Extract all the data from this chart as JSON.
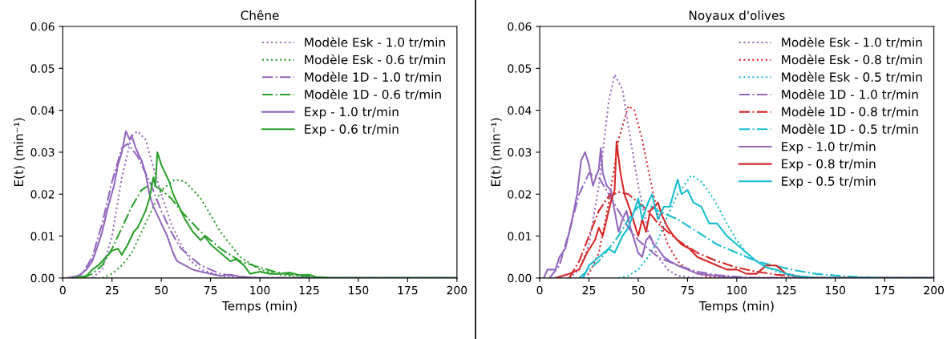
{
  "chart_data": [
    {
      "type": "line",
      "title": "Chêne",
      "xlabel": "Temps (min)",
      "ylabel": "E(t) (min⁻¹)",
      "legend": "top right",
      "grid": false,
      "xlim": [
        0,
        200
      ],
      "xticks": [
        0,
        25,
        50,
        75,
        100,
        125,
        150,
        175,
        200
      ],
      "ylim": [
        0,
        0.06
      ],
      "yticks": [
        {
          "value": 0,
          "label": "0.00"
        },
        {
          "value": 0.01,
          "label": "0.01"
        },
        {
          "value": 0.02,
          "label": "0.02"
        },
        {
          "value": 0.03,
          "label": "0.03"
        },
        {
          "value": 0.04,
          "label": "0.04"
        },
        {
          "value": 0.05,
          "label": "0.05"
        },
        {
          "value": 0.06,
          "label": "0.06"
        }
      ],
      "series": [
        {
          "name": "Modèle Esk - 1.0 tr/min",
          "color": "#9467bd",
          "line_style": "dotted",
          "x": [
            15,
            20,
            25,
            30,
            35,
            38,
            42,
            45,
            50,
            55,
            60,
            65,
            70,
            80,
            90,
            200
          ],
          "values": [
            0,
            0.002,
            0.01,
            0.024,
            0.034,
            0.035,
            0.033,
            0.028,
            0.02,
            0.013,
            0.008,
            0.004,
            0.002,
            0.0005,
            0,
            0
          ]
        },
        {
          "name": "Modèle Esk - 0.6 tr/min",
          "color": "#2ca02c",
          "line_style": "dotted",
          "x": [
            20,
            25,
            30,
            35,
            40,
            45,
            50,
            57,
            62,
            70,
            75,
            80,
            85,
            90,
            100,
            110,
            120,
            130,
            200
          ],
          "values": [
            0,
            0.001,
            0.003,
            0.006,
            0.011,
            0.016,
            0.021,
            0.0235,
            0.023,
            0.019,
            0.015,
            0.011,
            0.008,
            0.005,
            0.002,
            0.0008,
            0.0002,
            0,
            0
          ]
        },
        {
          "name": "Modèle 1D - 1.0 tr/min",
          "color": "#9467bd",
          "line_style": "dashdot",
          "x": [
            5,
            10,
            15,
            20,
            25,
            30,
            33,
            38,
            45,
            50,
            55,
            60,
            70,
            80,
            90,
            100,
            200
          ],
          "values": [
            0,
            0.001,
            0.005,
            0.013,
            0.023,
            0.031,
            0.032,
            0.029,
            0.022,
            0.016,
            0.011,
            0.007,
            0.003,
            0.001,
            0.0003,
            0,
            0
          ]
        },
        {
          "name": "Modèle 1D - 0.6 tr/min",
          "color": "#2ca02c",
          "line_style": "dashdot",
          "x": [
            10,
            15,
            20,
            25,
            30,
            35,
            40,
            45,
            50,
            55,
            60,
            70,
            80,
            90,
            100,
            110,
            120,
            140,
            200
          ],
          "values": [
            0,
            0.001,
            0.003,
            0.007,
            0.012,
            0.017,
            0.021,
            0.0225,
            0.021,
            0.019,
            0.016,
            0.011,
            0.007,
            0.004,
            0.0025,
            0.0012,
            0.0005,
            0,
            0
          ]
        },
        {
          "name": "Exp - 1.0 tr/min",
          "color": "#9467bd",
          "line_style": "solid",
          "x": [
            2,
            8,
            12,
            15,
            18,
            20,
            23,
            26,
            28,
            30,
            32,
            34,
            35,
            37,
            40,
            42,
            44,
            46,
            48,
            50,
            53,
            56,
            58,
            62,
            66,
            70,
            75,
            80,
            85,
            90,
            100,
            200
          ],
          "values": [
            0,
            0.0005,
            0.002,
            0.004,
            0.008,
            0.011,
            0.017,
            0.022,
            0.027,
            0.03,
            0.035,
            0.033,
            0.034,
            0.031,
            0.028,
            0.025,
            0.02,
            0.017,
            0.015,
            0.013,
            0.01,
            0.006,
            0.004,
            0.003,
            0.002,
            0.0015,
            0.001,
            0.0005,
            0.0008,
            0.0003,
            0,
            0
          ]
        },
        {
          "name": "Exp - 0.6 tr/min",
          "color": "#2ca02c",
          "line_style": "solid",
          "x": [
            5,
            12,
            15,
            18,
            22,
            25,
            28,
            30,
            33,
            36,
            38,
            40,
            42,
            44,
            46,
            47,
            48,
            50,
            52,
            54,
            56,
            58,
            62,
            66,
            70,
            72,
            75,
            80,
            85,
            88,
            92,
            95,
            100,
            105,
            110,
            115,
            120,
            125,
            130,
            200
          ],
          "values": [
            0,
            0.0005,
            0.002,
            0.003,
            0.005,
            0.0065,
            0.007,
            0.0055,
            0.008,
            0.011,
            0.012,
            0.014,
            0.016,
            0.019,
            0.024,
            0.022,
            0.03,
            0.027,
            0.025,
            0.023,
            0.02,
            0.018,
            0.014,
            0.011,
            0.009,
            0.01,
            0.008,
            0.006,
            0.004,
            0.0045,
            0.003,
            0.001,
            0.0015,
            0.001,
            0.001,
            0.0013,
            0.0007,
            0.0008,
            0,
            0
          ]
        }
      ]
    },
    {
      "type": "line",
      "title": "Noyaux d'olives",
      "xlabel": "Temps (min)",
      "ylabel": "E(t) (min⁻¹)",
      "legend": "top right",
      "grid": false,
      "xlim": [
        0,
        200
      ],
      "xticks": [
        0,
        25,
        50,
        75,
        100,
        125,
        150,
        175,
        200
      ],
      "ylim": [
        0,
        0.06
      ],
      "yticks": [
        {
          "value": 0,
          "label": "0.00"
        },
        {
          "value": 0.01,
          "label": "0.01"
        },
        {
          "value": 0.02,
          "label": "0.02"
        },
        {
          "value": 0.03,
          "label": "0.03"
        },
        {
          "value": 0.04,
          "label": "0.04"
        },
        {
          "value": 0.05,
          "label": "0.05"
        },
        {
          "value": 0.06,
          "label": "0.06"
        }
      ],
      "series": [
        {
          "name": "Modèle Esk - 1.0 tr/min",
          "color": "#9467bd",
          "line_style": "dotted",
          "x": [
            15,
            20,
            25,
            30,
            35,
            38,
            42,
            45,
            50,
            55,
            60,
            65,
            70,
            80,
            200
          ],
          "values": [
            0,
            0.002,
            0.008,
            0.022,
            0.042,
            0.0485,
            0.045,
            0.036,
            0.022,
            0.011,
            0.005,
            0.002,
            0.0005,
            0,
            0
          ]
        },
        {
          "name": "Modèle Esk - 0.8 tr/min",
          "color": "#d62728",
          "line_style": "dotted",
          "x": [
            20,
            25,
            30,
            35,
            40,
            45,
            48,
            52,
            55,
            60,
            65,
            70,
            75,
            85,
            95,
            200
          ],
          "values": [
            0,
            0.001,
            0.006,
            0.018,
            0.033,
            0.041,
            0.04,
            0.033,
            0.026,
            0.015,
            0.008,
            0.004,
            0.002,
            0.0003,
            0,
            0
          ]
        },
        {
          "name": "Modèle Esk - 0.5 tr/min",
          "color": "#17becf",
          "line_style": "dotted",
          "x": [
            40,
            45,
            50,
            55,
            60,
            65,
            70,
            77,
            82,
            88,
            95,
            100,
            105,
            110,
            120,
            130,
            140,
            200
          ],
          "values": [
            0,
            0.0005,
            0.002,
            0.005,
            0.009,
            0.015,
            0.02,
            0.0245,
            0.023,
            0.019,
            0.013,
            0.009,
            0.006,
            0.004,
            0.0015,
            0.0005,
            0,
            0
          ]
        },
        {
          "name": "Modèle 1D - 1.0 tr/min",
          "color": "#9467bd",
          "line_style": "dashdot",
          "x": [
            5,
            10,
            15,
            20,
            25,
            30,
            35,
            40,
            45,
            50,
            60,
            70,
            80,
            90,
            100,
            110,
            200
          ],
          "values": [
            0,
            0.003,
            0.011,
            0.02,
            0.025,
            0.024,
            0.02,
            0.016,
            0.012,
            0.009,
            0.005,
            0.003,
            0.0015,
            0.0007,
            0.0003,
            0,
            0
          ]
        },
        {
          "name": "Modèle 1D - 0.8 tr/min",
          "color": "#d62728",
          "line_style": "dashdot",
          "x": [
            15,
            20,
            25,
            30,
            35,
            40,
            45,
            50,
            55,
            60,
            70,
            80,
            90,
            100,
            110,
            120,
            130,
            140,
            200
          ],
          "values": [
            0,
            0.004,
            0.01,
            0.016,
            0.0195,
            0.0205,
            0.02,
            0.018,
            0.016,
            0.013,
            0.009,
            0.006,
            0.004,
            0.0025,
            0.0015,
            0.0008,
            0.0004,
            0,
            0
          ]
        },
        {
          "name": "Modèle 1D - 0.5 tr/min",
          "color": "#17becf",
          "line_style": "dashdot",
          "x": [
            20,
            25,
            30,
            35,
            40,
            45,
            50,
            55,
            60,
            70,
            80,
            90,
            100,
            110,
            120,
            130,
            140,
            150,
            160,
            175,
            200
          ],
          "values": [
            0,
            0.002,
            0.004,
            0.007,
            0.01,
            0.014,
            0.017,
            0.0175,
            0.016,
            0.014,
            0.011,
            0.008,
            0.006,
            0.004,
            0.0028,
            0.0018,
            0.001,
            0.0006,
            0.0003,
            0,
            0
          ]
        },
        {
          "name": "Exp - 1.0 tr/min",
          "color": "#9467bd",
          "line_style": "solid",
          "x": [
            2,
            4,
            8,
            10,
            13,
            16,
            19,
            21,
            23,
            25,
            27,
            30,
            31,
            32,
            34,
            36,
            38,
            40,
            42,
            44,
            46,
            48,
            50,
            52,
            54,
            56,
            58,
            60,
            63,
            66,
            70,
            75,
            80,
            90,
            100,
            200
          ],
          "values": [
            0,
            0.002,
            0.002,
            0.005,
            0.007,
            0.013,
            0.02,
            0.028,
            0.03,
            0.027,
            0.022,
            0.026,
            0.031,
            0.025,
            0.022,
            0.021,
            0.016,
            0.011,
            0.014,
            0.016,
            0.012,
            0.009,
            0.006,
            0.005,
            0.009,
            0.01,
            0.008,
            0.007,
            0.005,
            0.004,
            0.003,
            0.002,
            0.001,
            0.0005,
            0,
            0
          ]
        },
        {
          "name": "Exp - 0.8 tr/min",
          "color": "#d62728",
          "line_style": "solid",
          "x": [
            8,
            15,
            20,
            24,
            28,
            30,
            32,
            34,
            36,
            38,
            39,
            41,
            43,
            46,
            48,
            50,
            52,
            54,
            56,
            58,
            60,
            62,
            65,
            68,
            72,
            76,
            80,
            85,
            90,
            95,
            100,
            105,
            110,
            115,
            120,
            125,
            130,
            140,
            200
          ],
          "values": [
            0,
            0.001,
            0.002,
            0.006,
            0.009,
            0.012,
            0.01,
            0.014,
            0.018,
            0.021,
            0.0325,
            0.025,
            0.02,
            0.016,
            0.013,
            0.01,
            0.014,
            0.011,
            0.016,
            0.017,
            0.018,
            0.015,
            0.012,
            0.01,
            0.008,
            0.007,
            0.005,
            0.004,
            0.003,
            0.002,
            0.002,
            0.001,
            0.001,
            0.003,
            0.003,
            0.001,
            0.0005,
            0,
            0
          ]
        },
        {
          "name": "Exp - 0.5 tr/min",
          "color": "#17becf",
          "line_style": "solid",
          "x": [
            22,
            25,
            30,
            35,
            38,
            42,
            45,
            48,
            50,
            52,
            55,
            57,
            60,
            63,
            66,
            70,
            72,
            75,
            78,
            82,
            86,
            90,
            95,
            100,
            105,
            110,
            115,
            120,
            125,
            130,
            140,
            200
          ],
          "values": [
            0,
            0.003,
            0.005,
            0.007,
            0.006,
            0.01,
            0.012,
            0.016,
            0.019,
            0.014,
            0.018,
            0.02,
            0.014,
            0.017,
            0.017,
            0.0235,
            0.02,
            0.021,
            0.018,
            0.017,
            0.013,
            0.013,
            0.01,
            0.008,
            0.006,
            0.004,
            0.0025,
            0.002,
            0.001,
            0.0005,
            0,
            0
          ]
        }
      ]
    }
  ]
}
